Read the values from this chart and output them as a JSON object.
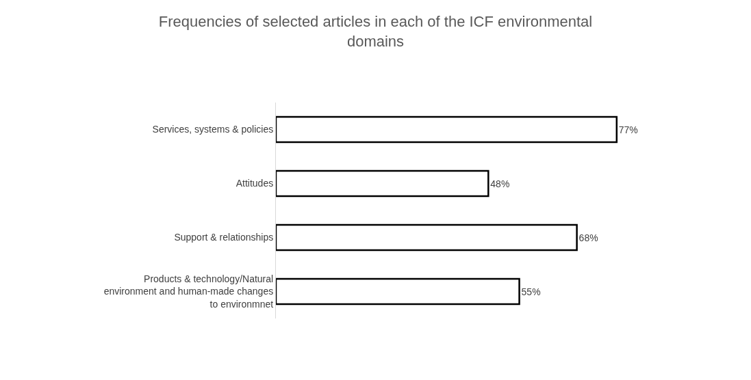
{
  "chart_data": {
    "type": "bar",
    "orientation": "horizontal",
    "title": "Frequencies of selected articles in each of the ICF environmental domains",
    "categories": [
      "Services, systems & policies",
      "Attitudes",
      "Support & relationships",
      "Products & technology/Natural environment and human-made changes to environmnet"
    ],
    "values": [
      77,
      48,
      68,
      55
    ],
    "value_labels": [
      "77%",
      "48%",
      "68%",
      "55%"
    ],
    "color": "#ffffff",
    "tick_labels": "y",
    "legend": false
  }
}
